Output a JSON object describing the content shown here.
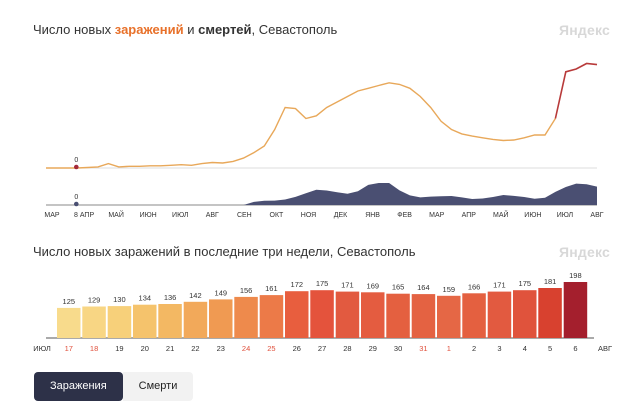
{
  "header": {
    "title_pre": "Число новых ",
    "title_infections": "заражений",
    "title_mid": " и ",
    "title_deaths": "смертей",
    "title_post": ", Севастополь",
    "logo": "Яндекс"
  },
  "header2": {
    "title": "Число новых заражений в последние три недели, Севастополь",
    "logo": "Яндекс"
  },
  "tabs": {
    "infections": "Заражения",
    "deaths": "Смерти"
  },
  "colors": {
    "infections_line": "#e8a85a",
    "recent_line": "#b83a3a",
    "deaths_area": "#4a4f72",
    "marker": "#a3283a",
    "tab_active": "#2d3148"
  },
  "chart_data": [
    {
      "type": "line",
      "x_tick_labels": [
        "МАР",
        "8 АПР",
        "МАЙ",
        "ИЮН",
        "ИЮЛ",
        "АВГ",
        "СЕН",
        "ОКТ",
        "НОЯ",
        "ДЕК",
        "ЯНВ",
        "ФЕВ",
        "МАР",
        "АПР",
        "МАЙ",
        "ИЮН",
        "ИЮЛ",
        "АВГ"
      ],
      "annotations": [
        {
          "series": "Заражения",
          "x": "8 АПР",
          "label": "0"
        },
        {
          "series": "Смерти",
          "x": "8 АПР",
          "label": "0"
        }
      ],
      "series": [
        {
          "name": "Заражения",
          "values": [
            0,
            0,
            0,
            0,
            1,
            2,
            8,
            2,
            3,
            3,
            4,
            4,
            5,
            6,
            5,
            8,
            10,
            9,
            12,
            18,
            28,
            40,
            70,
            110,
            108,
            90,
            95,
            110,
            120,
            130,
            140,
            145,
            150,
            155,
            152,
            145,
            130,
            110,
            85,
            70,
            62,
            58,
            55,
            52,
            50,
            51,
            55,
            60,
            60,
            90,
            175,
            180,
            190,
            188
          ]
        },
        {
          "name": "Смерти",
          "values": [
            0,
            0,
            0,
            0,
            0,
            0,
            0,
            0,
            0,
            0,
            0,
            0,
            0,
            0,
            0,
            0,
            0,
            0,
            0,
            0,
            2,
            3,
            4,
            6,
            8,
            9,
            10,
            10,
            11,
            12,
            14,
            16,
            18,
            15,
            12,
            10,
            8,
            7,
            6,
            6,
            6,
            6,
            7,
            7,
            7,
            6,
            6,
            6,
            8,
            12,
            13,
            14,
            15,
            17
          ]
        }
      ],
      "grid": false
    },
    {
      "type": "bar",
      "categories": [
        "17",
        "18",
        "19",
        "20",
        "21",
        "22",
        "23",
        "24",
        "25",
        "26",
        "27",
        "28",
        "29",
        "30",
        "31",
        "1",
        "2",
        "3",
        "4",
        "5",
        "6"
      ],
      "weekend_categories": [
        "17",
        "18",
        "24",
        "25",
        "31",
        "1"
      ],
      "month_labels": {
        "start": "ИЮЛ",
        "end": "АВГ"
      },
      "values": [
        125,
        129,
        130,
        134,
        136,
        142,
        149,
        156,
        161,
        172,
        175,
        171,
        169,
        165,
        164,
        159,
        166,
        171,
        175,
        181,
        198
      ],
      "grid": false
    }
  ]
}
